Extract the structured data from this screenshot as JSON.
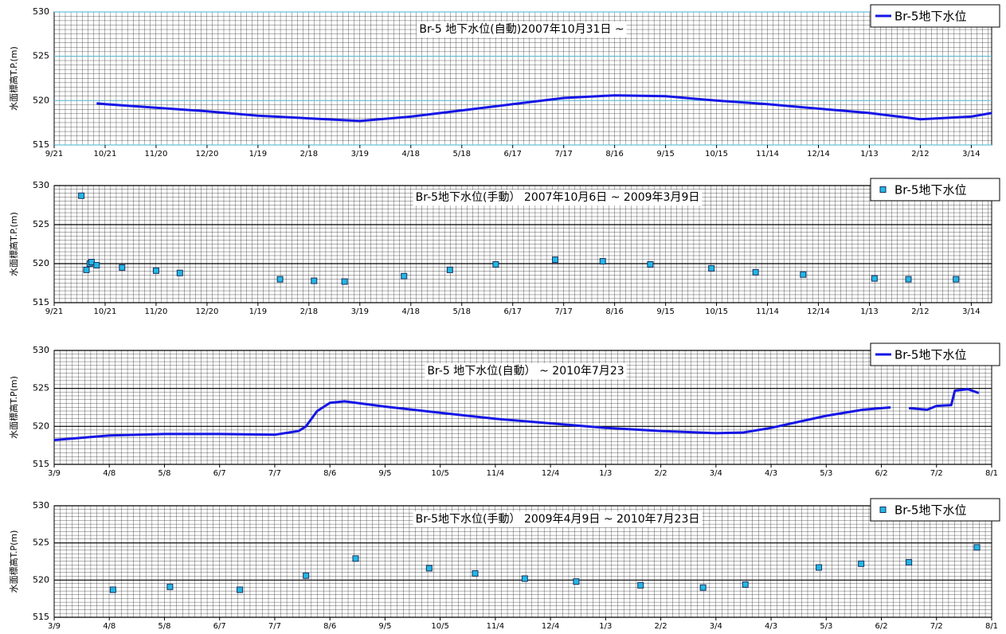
{
  "chart_data": [
    {
      "type": "line",
      "title": "Br-5 地下水位(自動)2007年10月31日 ~",
      "ylabel": "水面標高T.P.(m)",
      "legend": "top-right",
      "grid": true,
      "grid_color": "#66c2d9",
      "ylim": [
        515,
        530
      ],
      "yticks": [
        515,
        520,
        525,
        530
      ],
      "xlim": [
        0,
        552
      ],
      "xticks": [
        {
          "value": 0,
          "label": "9/21"
        },
        {
          "value": 30,
          "label": "10/21"
        },
        {
          "value": 60,
          "label": "11/20"
        },
        {
          "value": 90,
          "label": "12/20"
        },
        {
          "value": 120,
          "label": "1/19"
        },
        {
          "value": 150,
          "label": "2/18"
        },
        {
          "value": 180,
          "label": "3/19"
        },
        {
          "value": 210,
          "label": "4/18"
        },
        {
          "value": 240,
          "label": "5/18"
        },
        {
          "value": 270,
          "label": "6/17"
        },
        {
          "value": 300,
          "label": "7/17"
        },
        {
          "value": 330,
          "label": "8/16"
        },
        {
          "value": 360,
          "label": "9/15"
        },
        {
          "value": 390,
          "label": "10/15"
        },
        {
          "value": 420,
          "label": "11/14"
        },
        {
          "value": 450,
          "label": "12/14"
        },
        {
          "value": 480,
          "label": "1/13"
        },
        {
          "value": 510,
          "label": "2/12"
        },
        {
          "value": 540,
          "label": "3/14"
        }
      ],
      "x": [
        25,
        30,
        60,
        90,
        120,
        150,
        180,
        210,
        240,
        270,
        300,
        330,
        360,
        390,
        420,
        450,
        480,
        510,
        540,
        552
      ],
      "series": [
        {
          "name": "Br-5地下水位",
          "color": "#1515e6",
          "values": [
            519.7,
            519.6,
            519.2,
            518.8,
            518.3,
            518.0,
            517.7,
            518.2,
            518.9,
            519.6,
            520.3,
            520.6,
            520.5,
            520.0,
            519.6,
            519.1,
            518.6,
            517.9,
            518.2,
            518.6
          ]
        }
      ]
    },
    {
      "type": "scatter",
      "title": "Br-5地下水位(手動） 2007年10月6日 ~ 2009年3月9日",
      "ylabel": "水面標高T.P.(m)",
      "legend": "top-right",
      "grid": true,
      "grid_color": "#000000",
      "ylim": [
        515,
        530
      ],
      "yticks": [
        515,
        520,
        525,
        530
      ],
      "xlim": [
        0,
        552
      ],
      "xticks": [
        {
          "value": 0,
          "label": "9/21"
        },
        {
          "value": 30,
          "label": "10/21"
        },
        {
          "value": 60,
          "label": "11/20"
        },
        {
          "value": 90,
          "label": "12/20"
        },
        {
          "value": 120,
          "label": "1/19"
        },
        {
          "value": 150,
          "label": "2/18"
        },
        {
          "value": 180,
          "label": "3/19"
        },
        {
          "value": 210,
          "label": "4/18"
        },
        {
          "value": 240,
          "label": "5/18"
        },
        {
          "value": 270,
          "label": "6/17"
        },
        {
          "value": 300,
          "label": "7/17"
        },
        {
          "value": 330,
          "label": "8/16"
        },
        {
          "value": 360,
          "label": "9/15"
        },
        {
          "value": 390,
          "label": "10/15"
        },
        {
          "value": 420,
          "label": "11/14"
        },
        {
          "value": 450,
          "label": "12/14"
        },
        {
          "value": 480,
          "label": "1/13"
        },
        {
          "value": 510,
          "label": "2/12"
        },
        {
          "value": 540,
          "label": "3/14"
        }
      ],
      "x": [
        16,
        19,
        21,
        22,
        25,
        40,
        60,
        74,
        133,
        153,
        171,
        206,
        233,
        260,
        295,
        323,
        351,
        387,
        413,
        441,
        483,
        503,
        531
      ],
      "series": [
        {
          "name": "Br-5地下水位",
          "color": "#22b8e6",
          "values": [
            528.7,
            519.2,
            520.0,
            520.2,
            519.8,
            519.5,
            519.1,
            518.8,
            518.0,
            517.8,
            517.7,
            518.4,
            519.2,
            519.9,
            520.5,
            520.3,
            519.9,
            519.4,
            518.9,
            518.6,
            518.1,
            518.0,
            518.0
          ]
        }
      ]
    },
    {
      "type": "line",
      "title": "Br-5 地下水位(自動） ~ 2010年7月23",
      "ylabel": "水面標高T.P(m)",
      "legend": "top-right",
      "grid": true,
      "grid_color": "#000000",
      "ylim": [
        515,
        530
      ],
      "yticks": [
        515,
        520,
        525,
        530
      ],
      "xlim": [
        0,
        510
      ],
      "xticks": [
        {
          "value": 0,
          "label": "3/9"
        },
        {
          "value": 30,
          "label": "4/8"
        },
        {
          "value": 60,
          "label": "5/8"
        },
        {
          "value": 90,
          "label": "6/7"
        },
        {
          "value": 120,
          "label": "7/7"
        },
        {
          "value": 150,
          "label": "8/6"
        },
        {
          "value": 180,
          "label": "9/5"
        },
        {
          "value": 210,
          "label": "10/5"
        },
        {
          "value": 240,
          "label": "11/4"
        },
        {
          "value": 270,
          "label": "12/4"
        },
        {
          "value": 300,
          "label": "1/3"
        },
        {
          "value": 330,
          "label": "2/2"
        },
        {
          "value": 360,
          "label": "3/4"
        },
        {
          "value": 390,
          "label": "4/3"
        },
        {
          "value": 420,
          "label": "5/3"
        },
        {
          "value": 450,
          "label": "6/2"
        },
        {
          "value": 480,
          "label": "7/2"
        },
        {
          "value": 510,
          "label": "8/1"
        }
      ],
      "x": [
        0,
        15,
        30,
        60,
        90,
        120,
        133,
        137,
        143,
        150,
        158,
        180,
        210,
        240,
        270,
        300,
        330,
        360,
        375,
        390,
        420,
        440,
        455,
        460,
        465,
        475,
        480,
        488,
        490,
        497,
        503
      ],
      "series": [
        {
          "name": "Br-5地下水位",
          "color": "#1515e6",
          "values": [
            518.2,
            518.5,
            518.8,
            519.0,
            519.0,
            518.9,
            519.4,
            520.0,
            522.0,
            523.1,
            523.3,
            522.6,
            521.8,
            521.0,
            520.4,
            519.8,
            519.4,
            519.1,
            519.2,
            519.8,
            521.4,
            522.2,
            522.5,
            null,
            522.4,
            522.2,
            522.7,
            522.8,
            524.7,
            524.9,
            524.4
          ]
        }
      ]
    },
    {
      "type": "scatter",
      "title": "Br-5地下水位(手動） 2009年4月9日 ~ 2010年7月23日",
      "ylabel": "水面標高T.P(m)",
      "legend": "top-right",
      "grid": true,
      "grid_color": "#000000",
      "ylim": [
        515,
        530
      ],
      "yticks": [
        515,
        520,
        525,
        530
      ],
      "xlim": [
        0,
        510
      ],
      "xticks": [
        {
          "value": 0,
          "label": "3/9"
        },
        {
          "value": 30,
          "label": "4/8"
        },
        {
          "value": 60,
          "label": "5/8"
        },
        {
          "value": 90,
          "label": "6/7"
        },
        {
          "value": 120,
          "label": "7/7"
        },
        {
          "value": 150,
          "label": "8/6"
        },
        {
          "value": 180,
          "label": "9/5"
        },
        {
          "value": 210,
          "label": "10/5"
        },
        {
          "value": 240,
          "label": "11/4"
        },
        {
          "value": 270,
          "label": "12/4"
        },
        {
          "value": 300,
          "label": "1/3"
        },
        {
          "value": 330,
          "label": "2/2"
        },
        {
          "value": 360,
          "label": "3/4"
        },
        {
          "value": 390,
          "label": "4/3"
        },
        {
          "value": 420,
          "label": "5/3"
        },
        {
          "value": 450,
          "label": "6/2"
        },
        {
          "value": 480,
          "label": "7/2"
        },
        {
          "value": 510,
          "label": "8/1"
        }
      ],
      "x": [
        32,
        63,
        101,
        137,
        164,
        204,
        229,
        256,
        284,
        319,
        353,
        376,
        416,
        439,
        465,
        502
      ],
      "series": [
        {
          "name": "Br-5地下水位",
          "color": "#22b8e6",
          "values": [
            518.7,
            519.1,
            518.7,
            520.6,
            522.9,
            521.6,
            520.9,
            520.2,
            519.8,
            519.3,
            519.0,
            519.4,
            521.7,
            522.2,
            522.4,
            524.4
          ]
        }
      ]
    }
  ]
}
